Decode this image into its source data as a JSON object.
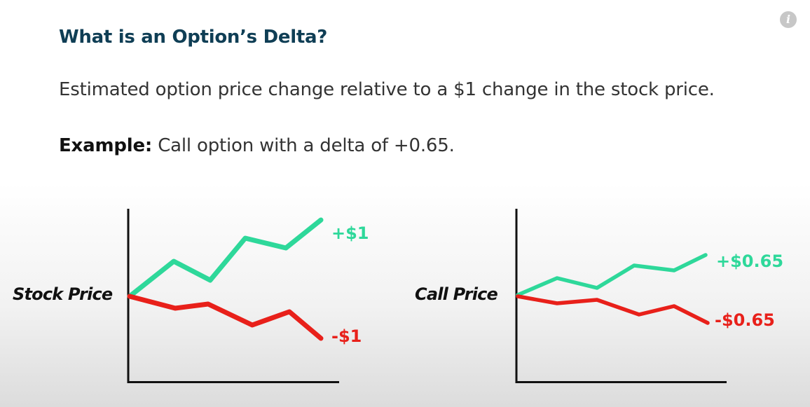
{
  "slide": {
    "title": "What is an Option’s Delta?",
    "definition": "Estimated option price change relative to a $1 change in the stock price.",
    "example_label": "Example:",
    "example_text": " Call option with a delta of +0.65."
  },
  "info_icon": {
    "glyph": "i",
    "icon": "info-icon"
  },
  "colors": {
    "up": "#2ed89a",
    "down": "#e8201a",
    "title": "#0f3e55",
    "axis": "#111111"
  },
  "chart_data": [
    {
      "type": "line",
      "ylabel": "Stock Price",
      "series": [
        {
          "label": "+$1",
          "direction": "up"
        },
        {
          "label": "-$1",
          "direction": "down"
        }
      ]
    },
    {
      "type": "line",
      "ylabel": "Call Price",
      "series": [
        {
          "label": "+$0.65",
          "direction": "up"
        },
        {
          "label": "-$0.65",
          "direction": "down"
        }
      ]
    }
  ]
}
